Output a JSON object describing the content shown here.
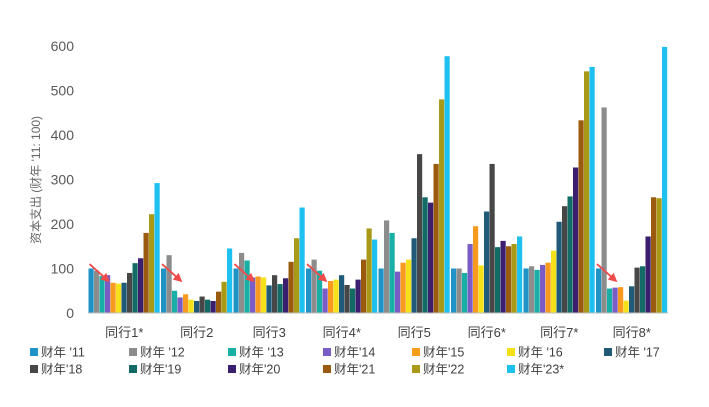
{
  "chart_data": {
    "type": "bar",
    "title": "",
    "xlabel": "",
    "ylabel": "资本支出 (财年 '11: 100)",
    "ylim": [
      0,
      600
    ],
    "yticks": [
      0,
      100,
      200,
      300,
      400,
      500,
      600
    ],
    "grid": false,
    "legend_position": "bottom",
    "categories": [
      "同行1*",
      "同行2",
      "同行3",
      "同行4*",
      "同行5",
      "同行6*",
      "同行7*",
      "同行8*"
    ],
    "series": [
      {
        "name": "财年 '11",
        "color": "#1f93c6",
        "values": [
          100,
          100,
          100,
          100,
          100,
          100,
          100,
          100
        ]
      },
      {
        "name": "财年 '12",
        "color": "#8c8c8c",
        "values": [
          95,
          130,
          135,
          120,
          208,
          100,
          105,
          462
        ]
      },
      {
        "name": "财年 '13",
        "color": "#1aafa6",
        "values": [
          83,
          50,
          118,
          95,
          180,
          90,
          97,
          55
        ]
      },
      {
        "name": "财年'14",
        "color": "#7b5cc6",
        "values": [
          85,
          35,
          80,
          55,
          93,
          155,
          108,
          57
        ]
      },
      {
        "name": "财年'15",
        "color": "#f79a1e",
        "values": [
          68,
          42,
          82,
          72,
          113,
          195,
          113,
          58
        ]
      },
      {
        "name": "财年 '16",
        "color": "#f5e11a",
        "values": [
          66,
          30,
          80,
          75,
          120,
          107,
          140,
          28
        ]
      },
      {
        "name": "财年 '17",
        "color": "#1f5a78",
        "values": [
          68,
          27,
          62,
          85,
          168,
          228,
          205,
          60
        ]
      },
      {
        "name": "财年'18",
        "color": "#474747",
        "values": [
          90,
          37,
          85,
          63,
          357,
          335,
          240,
          102
        ]
      },
      {
        "name": "财年'19",
        "color": "#136b66",
        "values": [
          112,
          30,
          65,
          55,
          260,
          148,
          262,
          105
        ]
      },
      {
        "name": "财年'20",
        "color": "#3b1f6e",
        "values": [
          123,
          27,
          78,
          75,
          248,
          162,
          327,
          172
        ]
      },
      {
        "name": "财年'21",
        "color": "#9a5b0e",
        "values": [
          180,
          48,
          115,
          120,
          335,
          150,
          433,
          260
        ]
      },
      {
        "name": "财年'22",
        "color": "#a89a16",
        "values": [
          222,
          70,
          168,
          190,
          480,
          155,
          543,
          258
        ]
      },
      {
        "name": "财年'23*",
        "color": "#1ec0ef",
        "values": [
          292,
          145,
          237,
          165,
          577,
          172,
          553,
          598
        ]
      }
    ]
  }
}
